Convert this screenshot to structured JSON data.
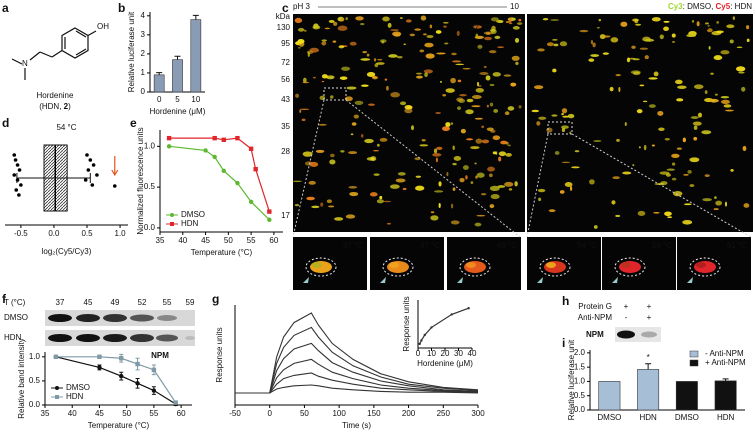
{
  "panel_labels": [
    "a",
    "b",
    "c",
    "d",
    "e",
    "f",
    "g",
    "h",
    "i"
  ],
  "structure": {
    "atom_o": "OH",
    "atom_n": "N",
    "name": "Hordenine",
    "abbr": "(HDN, ",
    "abbr_num": "2",
    "abbr_end": ")"
  },
  "gel": {
    "ph_start": "pH 3",
    "ph_end": "10",
    "cy3": "Cy3",
    "cy3_sample": ": DMSO, ",
    "cy5": "Cy5",
    "cy5_sample": ": HDN",
    "unit": "kDa",
    "mw": [
      130,
      95,
      72,
      56,
      43,
      35,
      28,
      17
    ],
    "left_temp": "37 °C",
    "right_temp": "56 °C",
    "inset_temps": [
      "37 °C",
      "47 °C",
      "49 °C",
      "54 °C",
      "56 °C",
      "61 °C"
    ]
  },
  "blot_f": {
    "header": "T (°C)",
    "temps": [
      37,
      45,
      49,
      52,
      55,
      59
    ],
    "rows": [
      "DMSO",
      "HDN"
    ]
  },
  "blot_h": {
    "rows": [
      "Protein G",
      "Anti-NPM"
    ],
    "signs": [
      [
        "+",
        "+"
      ],
      [
        "-",
        "+"
      ]
    ],
    "band": "NPM"
  },
  "chart_data": [
    {
      "type": "bar",
      "y_label": "Relative luciferase unit",
      "x_label": "Hordenine (μM)",
      "categories": [
        "0",
        "5",
        "10"
      ],
      "values": [
        0.9,
        1.7,
        3.8
      ],
      "errors": [
        0.12,
        0.18,
        0.22
      ],
      "color": "#8a9bb5",
      "ylim": [
        0,
        4.2
      ],
      "yticks": [
        0,
        1,
        2,
        3,
        4
      ]
    },
    {
      "type": "box",
      "title": "54 °C",
      "x_label": "log₂(Cy5/Cy3)",
      "xlim": [
        -0.74,
        1.12
      ],
      "xticks": [
        -0.5,
        {
          "value": 0,
          "label": "0.0"
        },
        0.5,
        {
          "value": 1,
          "label": "1.0"
        }
      ],
      "box": {
        "min": -0.56,
        "q1": -0.15,
        "median": 0.02,
        "q3": 0.2,
        "max": 0.55
      },
      "points": [
        -0.6,
        -0.58,
        -0.55,
        -0.52,
        -0.6,
        -0.55,
        -0.5,
        -0.57,
        -0.53,
        0.5,
        0.55,
        0.6,
        0.52,
        0.65,
        0.48,
        0.58,
        0.92
      ],
      "point_color": "#000",
      "arrow_color": "#e8541e"
    },
    {
      "type": "line",
      "y_label": "Normalized fluorescence units",
      "x_label": "Temperature (°C)",
      "xlim": [
        35,
        62
      ],
      "xticks": [
        35,
        40,
        45,
        50,
        55,
        60
      ],
      "ylim": [
        -0.05,
        1.2
      ],
      "yticks": [
        {
          "value": 0,
          "label": "0.0"
        },
        0.5,
        {
          "value": 1,
          "label": "1.0"
        }
      ],
      "legend": "lower left",
      "series": [
        {
          "name": "DMSO",
          "color": "#5cb82e",
          "x": [
            37,
            45,
            47,
            49,
            52,
            55,
            59
          ],
          "values": [
            1.0,
            0.95,
            0.87,
            0.7,
            0.55,
            0.32,
            0.1
          ]
        },
        {
          "name": "HDN",
          "color": "#e0262b",
          "x": [
            37,
            47,
            49,
            52,
            55,
            56,
            59
          ],
          "values": [
            1.1,
            1.1,
            1.08,
            1.1,
            0.97,
            0.72,
            0.2
          ]
        }
      ]
    },
    {
      "type": "line",
      "title": "NPM",
      "y_label": "Relative band intensity",
      "x_label": "Temperature (°C)",
      "xlim": [
        35,
        62
      ],
      "xticks": [
        35,
        40,
        45,
        50,
        55,
        60
      ],
      "ylim": [
        0,
        1.1
      ],
      "yticks": [
        {
          "value": 0,
          "label": "0.0"
        },
        0.5,
        {
          "value": 1,
          "label": "1.0"
        }
      ],
      "legend": "lower left",
      "series": [
        {
          "name": "DMSO",
          "color": "#111111",
          "x": [
            37,
            45,
            49,
            52,
            55,
            59
          ],
          "values": [
            1.0,
            0.78,
            0.6,
            0.45,
            0.3,
            0.02
          ],
          "errors": [
            0,
            0.05,
            0.08,
            0.1,
            0.08,
            0.03
          ]
        },
        {
          "name": "HDN",
          "color": "#7f9aa6",
          "x": [
            37,
            45,
            49,
            52,
            55,
            59
          ],
          "values": [
            1.0,
            1.0,
            0.97,
            0.85,
            0.73,
            0.05
          ],
          "errors": [
            0,
            0.03,
            0.08,
            0.12,
            0.1,
            0.03
          ]
        }
      ]
    },
    {
      "type": "line",
      "markers": false,
      "y_label": "Response units",
      "x_label": "Time (s)",
      "xlim": [
        -50,
        300
      ],
      "xticks": [
        -50,
        0,
        50,
        100,
        150,
        200,
        250,
        300
      ],
      "ylim": [
        -0.15,
        1.1
      ],
      "x": [
        -50,
        0,
        10,
        20,
        35,
        60,
        70,
        90,
        120,
        160,
        200,
        250,
        300
      ],
      "series": [
        {
          "color": "#333333",
          "values": [
            0,
            0,
            0.45,
            0.7,
            0.88,
            1.0,
            0.85,
            0.62,
            0.42,
            0.24,
            0.14,
            0.07,
            0.04
          ]
        },
        {
          "color": "#333333",
          "values": [
            0,
            0,
            0.37,
            0.57,
            0.72,
            0.82,
            0.7,
            0.51,
            0.34,
            0.2,
            0.11,
            0.06,
            0.03
          ]
        },
        {
          "color": "#333333",
          "values": [
            0,
            0,
            0.28,
            0.43,
            0.55,
            0.62,
            0.53,
            0.38,
            0.26,
            0.15,
            0.09,
            0.04,
            0.02
          ]
        },
        {
          "color": "#333333",
          "values": [
            0,
            0,
            0.19,
            0.29,
            0.37,
            0.42,
            0.36,
            0.26,
            0.18,
            0.1,
            0.06,
            0.03,
            0.02
          ]
        },
        {
          "color": "#333333",
          "values": [
            0,
            0,
            0.11,
            0.18,
            0.22,
            0.25,
            0.21,
            0.16,
            0.11,
            0.06,
            0.04,
            0.02,
            0.01
          ]
        },
        {
          "color": "#333333",
          "values": [
            0,
            0,
            0.05,
            0.07,
            0.09,
            0.1,
            0.09,
            0.06,
            0.04,
            0.02,
            0.01,
            0.01,
            0
          ]
        }
      ]
    },
    {
      "type": "line",
      "y_label": "Response units",
      "x_label": "Hordenine (μM)",
      "xlim": [
        0,
        40
      ],
      "xticks": [
        0,
        10,
        20,
        30,
        40
      ],
      "ylim": [
        0,
        7
      ],
      "series": [
        {
          "color": "#333333",
          "x": [
            1.25,
            2.5,
            5,
            10,
            25,
            37.5
          ],
          "values": [
            0.6,
            1.1,
            1.9,
            3.0,
            4.9,
            5.8
          ]
        }
      ]
    },
    {
      "type": "bar",
      "y_label": "Relative luciferase unit",
      "categories": [
        "DMSO",
        "HDN",
        "DMSO",
        "HDN"
      ],
      "ylim": [
        0,
        2.1
      ],
      "yticks": [
        {
          "value": 0,
          "label": "0.0"
        },
        0.5,
        {
          "value": 1,
          "label": "1.0"
        },
        1.5,
        {
          "value": 2,
          "label": "2.0"
        }
      ],
      "legend": "upper right",
      "annotation": "*",
      "series": [
        {
          "name": "- Anti-NPM",
          "color": "#a7bfd6",
          "values": [
            1.0,
            1.42,
            null,
            null
          ],
          "errors": [
            null,
            0.2,
            null,
            null
          ]
        },
        {
          "name": "+ Anti-NPM",
          "color": "#111111",
          "values": [
            null,
            null,
            1.0,
            1.02
          ],
          "errors": [
            null,
            null,
            null,
            0.07
          ]
        }
      ]
    }
  ]
}
